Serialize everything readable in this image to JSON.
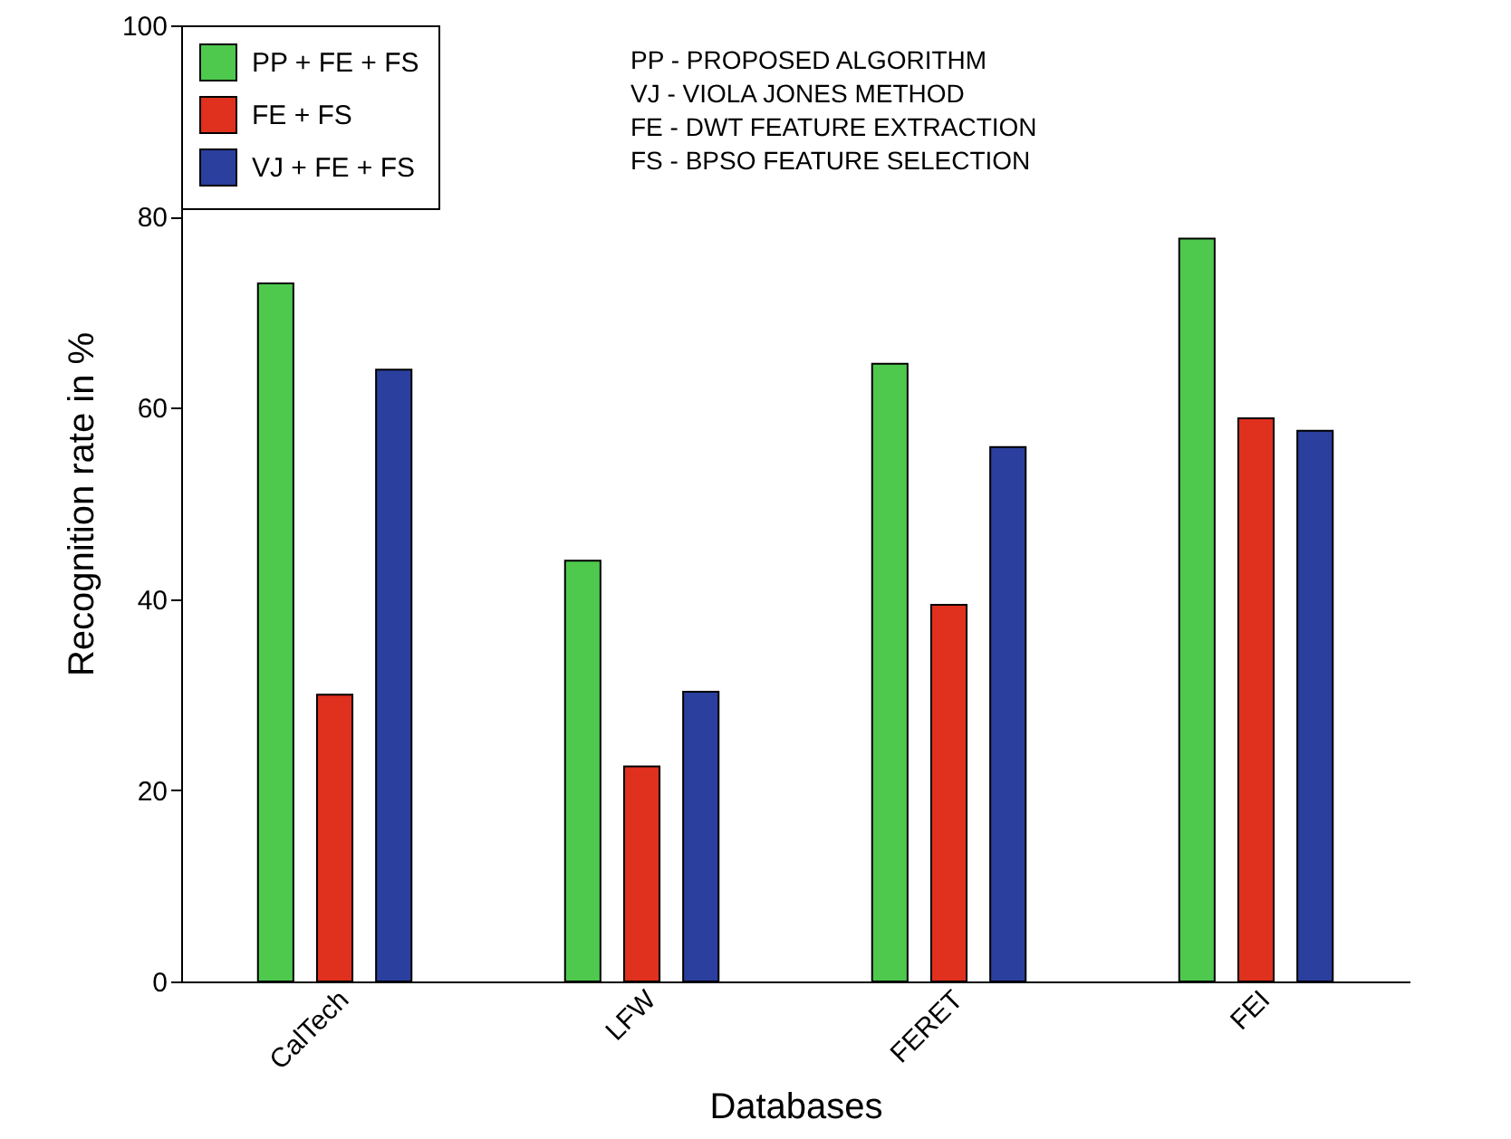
{
  "chart_data": {
    "type": "bar",
    "xlabel": "Databases",
    "ylabel": "Recognition rate in %",
    "categories": [
      "CalTech",
      "LFW",
      "FERET",
      "FEI"
    ],
    "series": [
      {
        "name": "PP + FE + FS",
        "color": "#4ec94e",
        "values": [
          73,
          44,
          64.6,
          77.7
        ]
      },
      {
        "name": "FE + FS",
        "color": "#e0301e",
        "values": [
          30,
          22.5,
          39.4,
          58.9
        ]
      },
      {
        "name": "VJ + FE + FS",
        "color": "#2b3f9e",
        "values": [
          64,
          30.3,
          55.9,
          57.6
        ]
      }
    ],
    "ylim": [
      0,
      100
    ],
    "yticks": [
      0,
      20,
      40,
      60,
      80,
      100
    ],
    "grid": false,
    "legend": "top left",
    "annotations": [
      "PP - PROPOSED ALGORITHM",
      "VJ - VIOLA JONES METHOD",
      "FE - DWT FEATURE EXTRACTION",
      "FS - BPSO FEATURE SELECTION"
    ]
  }
}
